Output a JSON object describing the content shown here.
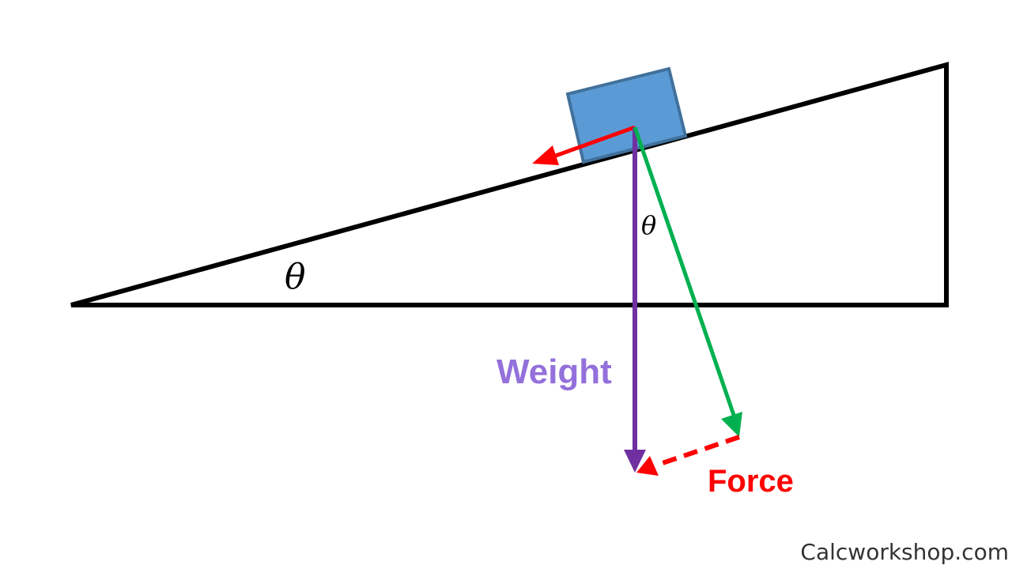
{
  "labels": {
    "incline_angle": "θ",
    "vector_angle": "θ",
    "weight": "Weight",
    "force": "Force"
  },
  "watermark": "Calcworkshop.com",
  "colors": {
    "incline": "#000000",
    "block_fill": "#5b9bd5",
    "block_stroke": "#41719c",
    "weight_arrow": "#7030a0",
    "weight_label": "#9370db",
    "normal_component": "#00b050",
    "force": "#ff0000"
  }
}
